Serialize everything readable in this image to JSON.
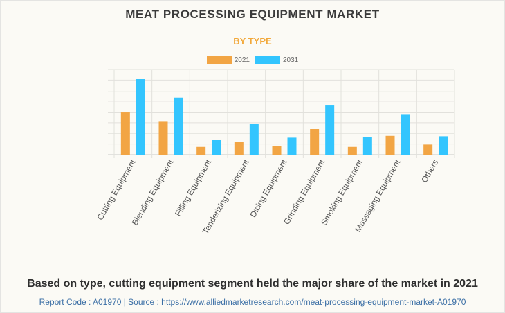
{
  "header": {
    "title": "MEAT PROCESSING EQUIPMENT MARKET",
    "subtitle": "BY TYPE"
  },
  "footer": {
    "caption": "Based on type, cutting equipment segment held the major share of the market in 2021",
    "source": "Report Code : A01970  |  Source : https://www.alliedmarketresearch.com/meat-processing-equipment-market-A01970"
  },
  "colors": {
    "series_2021": "#f2a544",
    "series_2031": "#33c5fe",
    "grid": "#e2e1dc",
    "axis": "#c9c9c6",
    "label": "#555555"
  },
  "chart_data": {
    "type": "bar",
    "title": "MEAT PROCESSING EQUIPMENT MARKET",
    "subtitle": "BY TYPE",
    "xlabel": "",
    "ylabel": "",
    "ylim": [
      0,
      8
    ],
    "grid": true,
    "y_tick_labels_shown": false,
    "legend_position": "top-center",
    "categories": [
      "Cutting Equipment",
      "Blending Equipment",
      "Filling Equipment",
      "Tenderizing Equipment",
      "Dicing Equipment",
      "Grinding Equipment",
      "Smoking Equipment",
      "Massaging Equipment",
      "Others"
    ],
    "series": [
      {
        "name": "2021",
        "values": [
          4.03,
          3.16,
          0.73,
          1.23,
          0.8,
          2.45,
          0.73,
          1.77,
          0.95
        ]
      },
      {
        "name": "2031",
        "values": [
          7.1,
          5.35,
          1.38,
          2.88,
          1.6,
          4.68,
          1.67,
          3.81,
          1.73
        ]
      }
    ]
  }
}
